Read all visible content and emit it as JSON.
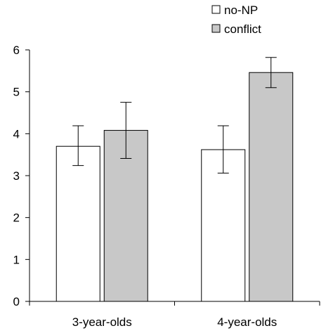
{
  "chart_data": {
    "type": "bar",
    "categories": [
      "3-year-olds",
      "4-year-olds"
    ],
    "series": [
      {
        "name": "no-NP",
        "color": "#ffffff",
        "values": [
          3.7,
          3.62
        ],
        "error_low": [
          3.24,
          3.06
        ],
        "error_high": [
          4.19,
          4.19
        ]
      },
      {
        "name": "conflict",
        "color": "#c8c8c8",
        "values": [
          4.08,
          5.46
        ],
        "error_low": [
          3.41,
          5.1
        ],
        "error_high": [
          4.75,
          5.82
        ]
      }
    ],
    "ylim": [
      0,
      6
    ],
    "yticks": [
      "0",
      "1",
      "2",
      "3",
      "4",
      "5",
      "6"
    ],
    "grid": false,
    "legend_position": "top-right",
    "title": "",
    "xlabel": "",
    "ylabel": ""
  }
}
